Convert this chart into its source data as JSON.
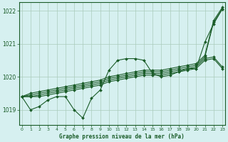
{
  "title": "Graphe pression niveau de la mer (hPa)",
  "background_color": "#d6f0f0",
  "grid_color": "#aaccbb",
  "line_color": "#1a5c28",
  "marker_color": "#1a5c28",
  "yticks": [
    1019,
    1020,
    1021,
    1022
  ],
  "ylim": [
    1018.55,
    1022.25
  ],
  "xlim": [
    -0.3,
    23.3
  ],
  "xticks": [
    0,
    1,
    2,
    3,
    4,
    5,
    6,
    7,
    8,
    9,
    10,
    11,
    12,
    13,
    14,
    15,
    16,
    17,
    18,
    19,
    20,
    21,
    22,
    23
  ],
  "lines": [
    [
      1019.4,
      1019.0,
      1019.1,
      1019.3,
      1019.4,
      1019.4,
      1019.0,
      1018.75,
      1019.35,
      1019.6,
      1020.2,
      1020.5,
      1020.55,
      1020.55,
      1020.5,
      1020.1,
      1020.0,
      1020.05,
      1020.15,
      1020.25,
      1020.25,
      1021.05,
      1021.6,
      1022.05
    ],
    [
      1019.4,
      1019.4,
      1019.4,
      1019.45,
      1019.5,
      1019.55,
      1019.6,
      1019.65,
      1019.7,
      1019.75,
      1019.85,
      1019.9,
      1019.95,
      1020.0,
      1020.05,
      1020.05,
      1020.05,
      1020.1,
      1020.15,
      1020.2,
      1020.25,
      1020.5,
      1020.55,
      1020.25
    ],
    [
      1019.4,
      1019.4,
      1019.45,
      1019.5,
      1019.55,
      1019.6,
      1019.65,
      1019.7,
      1019.75,
      1019.8,
      1019.9,
      1019.95,
      1020.0,
      1020.05,
      1020.1,
      1020.1,
      1020.1,
      1020.15,
      1020.2,
      1020.25,
      1020.3,
      1020.55,
      1020.6,
      1020.3
    ],
    [
      1019.4,
      1019.45,
      1019.5,
      1019.55,
      1019.6,
      1019.65,
      1019.7,
      1019.75,
      1019.8,
      1019.85,
      1019.95,
      1020.0,
      1020.05,
      1020.1,
      1020.15,
      1020.15,
      1020.15,
      1020.2,
      1020.25,
      1020.3,
      1020.35,
      1020.6,
      1021.65,
      1022.05
    ],
    [
      1019.4,
      1019.5,
      1019.55,
      1019.6,
      1019.65,
      1019.7,
      1019.75,
      1019.8,
      1019.85,
      1019.9,
      1020.0,
      1020.05,
      1020.1,
      1020.15,
      1020.2,
      1020.2,
      1020.2,
      1020.25,
      1020.3,
      1020.35,
      1020.4,
      1020.65,
      1021.7,
      1022.1
    ]
  ]
}
